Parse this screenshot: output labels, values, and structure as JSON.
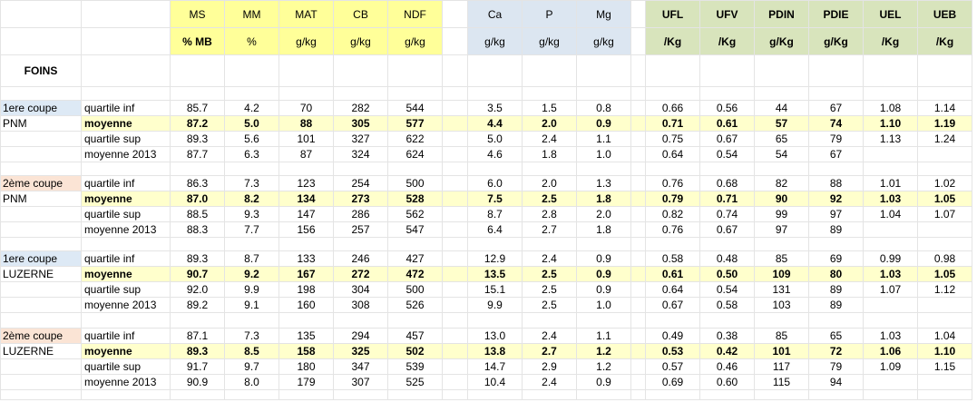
{
  "header": {
    "section_title": "FOINS",
    "columns_yellow": [
      {
        "name": "MS",
        "unit": "% MB"
      },
      {
        "name": "MM",
        "unit": "%"
      },
      {
        "name": "MAT",
        "unit": "g/kg"
      },
      {
        "name": "CB",
        "unit": "g/kg"
      },
      {
        "name": "NDF",
        "unit": "g/kg"
      }
    ],
    "columns_blue": [
      {
        "name": "Ca",
        "unit": "g/kg"
      },
      {
        "name": "P",
        "unit": "g/kg"
      },
      {
        "name": "Mg",
        "unit": "g/kg"
      }
    ],
    "columns_green": [
      {
        "name": "UFL",
        "unit": "/Kg"
      },
      {
        "name": "UFV",
        "unit": "/Kg"
      },
      {
        "name": "PDIN",
        "unit": "g/Kg"
      },
      {
        "name": "PDIE",
        "unit": "g/Kg"
      },
      {
        "name": "UEL",
        "unit": "/Kg"
      },
      {
        "name": "UEB",
        "unit": "/Kg"
      }
    ]
  },
  "groups": [
    {
      "cut": "1ere coupe",
      "type": "PNM",
      "rows": [
        {
          "label": "quartile inf",
          "y": [
            "85.7",
            "4.2",
            "70",
            "282",
            "544"
          ],
          "b": [
            "3.5",
            "1.5",
            "0.8"
          ],
          "g": [
            "0.66",
            "0.56",
            "44",
            "67",
            "1.08",
            "1.14"
          ]
        },
        {
          "label": "moyenne",
          "y": [
            "87.2",
            "5.0",
            "88",
            "305",
            "577"
          ],
          "b": [
            "4.4",
            "2.0",
            "0.9"
          ],
          "g": [
            "0.71",
            "0.61",
            "57",
            "74",
            "1.10",
            "1.19"
          ]
        },
        {
          "label": "quartile sup",
          "y": [
            "89.3",
            "5.6",
            "101",
            "327",
            "622"
          ],
          "b": [
            "5.0",
            "2.4",
            "1.1"
          ],
          "g": [
            "0.75",
            "0.67",
            "65",
            "79",
            "1.13",
            "1.24"
          ]
        },
        {
          "label": "moyenne 2013",
          "y": [
            "87.7",
            "6.3",
            "87",
            "324",
            "624"
          ],
          "b": [
            "4.6",
            "1.8",
            "1.0"
          ],
          "g": [
            "0.64",
            "0.54",
            "54",
            "67",
            "",
            ""
          ]
        }
      ]
    },
    {
      "cut": "2ème coupe",
      "type": "PNM",
      "rows": [
        {
          "label": "quartile inf",
          "y": [
            "86.3",
            "7.3",
            "123",
            "254",
            "500"
          ],
          "b": [
            "6.0",
            "2.0",
            "1.3"
          ],
          "g": [
            "0.76",
            "0.68",
            "82",
            "88",
            "1.01",
            "1.02"
          ]
        },
        {
          "label": "moyenne",
          "y": [
            "87.0",
            "8.2",
            "134",
            "273",
            "528"
          ],
          "b": [
            "7.5",
            "2.5",
            "1.8"
          ],
          "g": [
            "0.79",
            "0.71",
            "90",
            "92",
            "1.03",
            "1.05"
          ]
        },
        {
          "label": "quartile sup",
          "y": [
            "88.5",
            "9.3",
            "147",
            "286",
            "562"
          ],
          "b": [
            "8.7",
            "2.8",
            "2.0"
          ],
          "g": [
            "0.82",
            "0.74",
            "99",
            "97",
            "1.04",
            "1.07"
          ]
        },
        {
          "label": "moyenne 2013",
          "y": [
            "88.3",
            "7.7",
            "156",
            "257",
            "547"
          ],
          "b": [
            "6.4",
            "2.7",
            "1.8"
          ],
          "g": [
            "0.76",
            "0.67",
            "97",
            "89",
            "",
            ""
          ]
        }
      ]
    },
    {
      "cut": "1ere coupe",
      "type": "LUZERNE",
      "rows": [
        {
          "label": "quartile inf",
          "y": [
            "89.3",
            "8.7",
            "133",
            "246",
            "427"
          ],
          "b": [
            "12.9",
            "2.4",
            "0.9"
          ],
          "g": [
            "0.58",
            "0.48",
            "85",
            "69",
            "0.99",
            "0.98"
          ]
        },
        {
          "label": "moyenne",
          "y": [
            "90.7",
            "9.2",
            "167",
            "272",
            "472"
          ],
          "b": [
            "13.5",
            "2.5",
            "0.9"
          ],
          "g": [
            "0.61",
            "0.50",
            "109",
            "80",
            "1.03",
            "1.05"
          ]
        },
        {
          "label": "quartile sup",
          "y": [
            "92.0",
            "9.9",
            "198",
            "304",
            "500"
          ],
          "b": [
            "15.1",
            "2.5",
            "0.9"
          ],
          "g": [
            "0.64",
            "0.54",
            "131",
            "89",
            "1.07",
            "1.12"
          ]
        },
        {
          "label": "moyenne 2013",
          "y": [
            "89.2",
            "9.1",
            "160",
            "308",
            "526"
          ],
          "b": [
            "9.9",
            "2.5",
            "1.0"
          ],
          "g": [
            "0.67",
            "0.58",
            "103",
            "89",
            "",
            ""
          ]
        }
      ]
    },
    {
      "cut": "2ème coupe",
      "type": "LUZERNE",
      "rows": [
        {
          "label": "quartile inf",
          "y": [
            "87.1",
            "7.3",
            "135",
            "294",
            "457"
          ],
          "b": [
            "13.0",
            "2.4",
            "1.1"
          ],
          "g": [
            "0.49",
            "0.38",
            "85",
            "65",
            "1.03",
            "1.04"
          ]
        },
        {
          "label": "moyenne",
          "y": [
            "89.3",
            "8.5",
            "158",
            "325",
            "502"
          ],
          "b": [
            "13.8",
            "2.7",
            "1.2"
          ],
          "g": [
            "0.53",
            "0.42",
            "101",
            "72",
            "1.06",
            "1.10"
          ]
        },
        {
          "label": "quartile sup",
          "y": [
            "91.7",
            "9.7",
            "180",
            "347",
            "539"
          ],
          "b": [
            "14.7",
            "2.9",
            "1.2"
          ],
          "g": [
            "0.57",
            "0.46",
            "117",
            "79",
            "1.09",
            "1.15"
          ]
        },
        {
          "label": "moyenne 2013",
          "y": [
            "90.9",
            "8.0",
            "179",
            "307",
            "525"
          ],
          "b": [
            "10.4",
            "2.4",
            "0.9"
          ],
          "g": [
            "0.69",
            "0.60",
            "115",
            "94",
            "",
            ""
          ]
        }
      ]
    }
  ]
}
